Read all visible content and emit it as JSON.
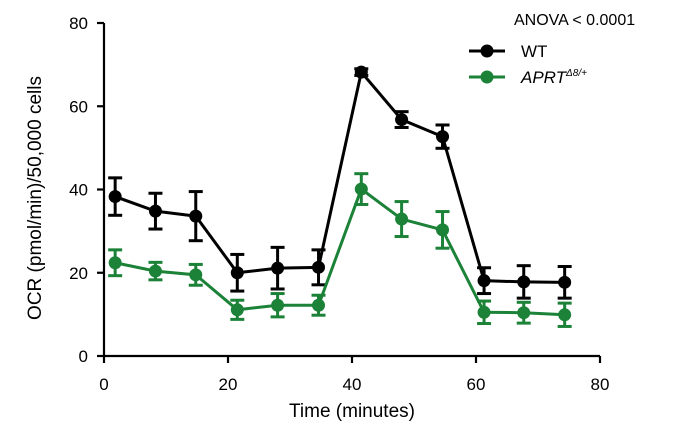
{
  "chart_data": {
    "type": "line",
    "title": "",
    "xlabel": "Time (minutes)",
    "ylabel": "OCR (pmol/min)/50,000 cells",
    "xlim": [
      0,
      80
    ],
    "ylim": [
      0,
      80
    ],
    "xticks": [
      0,
      20,
      40,
      60,
      80
    ],
    "yticks": [
      0,
      20,
      40,
      60,
      80
    ],
    "x": [
      1.8,
      8.3,
      14.8,
      21.5,
      28.0,
      34.6,
      41.5,
      48.0,
      54.6,
      61.3,
      67.7,
      74.3
    ],
    "series": [
      {
        "name": "WT",
        "color": "#000000",
        "values": [
          38.3,
          34.8,
          33.6,
          20.0,
          21.1,
          21.3,
          68.2,
          56.8,
          52.7,
          18.1,
          17.8,
          17.7
        ],
        "errors": [
          4.5,
          4.3,
          5.9,
          4.4,
          5.0,
          4.2,
          0.8,
          1.9,
          2.8,
          3.1,
          3.9,
          3.8
        ]
      },
      {
        "name": "APRT",
        "name_superscript": "Δ8/+",
        "color": "#1b8238",
        "values": [
          22.4,
          20.4,
          19.5,
          11.1,
          12.2,
          12.2,
          40.1,
          32.9,
          30.3,
          10.5,
          10.4,
          9.9
        ],
        "errors": [
          3.1,
          2.1,
          2.5,
          2.3,
          2.8,
          2.4,
          3.7,
          4.2,
          4.4,
          2.7,
          2.5,
          2.8
        ]
      }
    ],
    "annotation": "ANOVA < 0.0001",
    "legend_position": "top-right",
    "grid": false
  }
}
